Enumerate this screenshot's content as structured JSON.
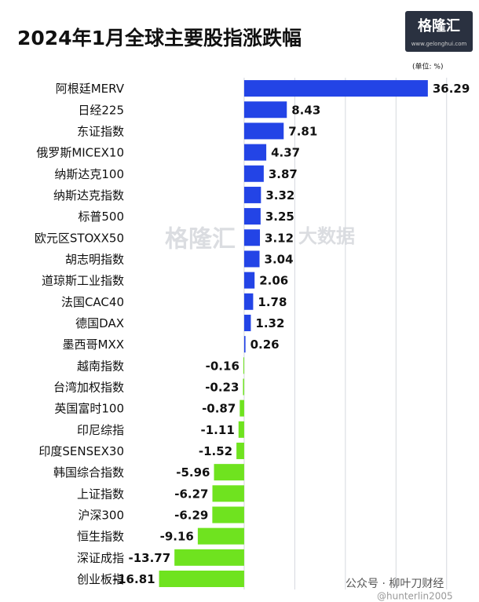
{
  "chart_data": {
    "type": "hbar",
    "title": "2024年1月全球主要股指涨跌幅",
    "unit_label": "(单位: %)",
    "logo": "格隆汇",
    "logo_site": "www.gelonghui.com",
    "watermark": "格隆汇",
    "watermark_right": "大数据",
    "footer": "公众号 · 柳叶刀财经",
    "footer_handle": "@hunterlin2005",
    "categories": [
      "阿根廷MERV",
      "日经225",
      "东证指数",
      "俄罗斯MICEX10",
      "纳斯达克100",
      "纳斯达克指数",
      "标普500",
      "欧元区STOXX50",
      "胡志明指数",
      "道琼斯工业指数",
      "法国CAC40",
      "德国DAX",
      "墨西哥MXX",
      "越南指数",
      "台湾加权指数",
      "英国富时100",
      "印尼综指",
      "印度SENSEX30",
      "韩国综合指数",
      "上证指数",
      "沪深300",
      "恒生指数",
      "深证成指",
      "创业板指"
    ],
    "values": [
      36.29,
      8.43,
      7.81,
      4.37,
      3.87,
      3.32,
      3.25,
      3.12,
      3.04,
      2.06,
      1.78,
      1.32,
      0.26,
      -0.16,
      -0.23,
      -0.87,
      -1.11,
      -1.52,
      -5.96,
      -6.27,
      -6.29,
      -9.16,
      -13.77,
      -16.81
    ],
    "color": "#2344e6",
    "negative_color": "#6fe31f",
    "xlim": [
      -20,
      45
    ],
    "xticks": [
      0,
      10,
      20,
      30,
      40
    ],
    "grid": true
  }
}
